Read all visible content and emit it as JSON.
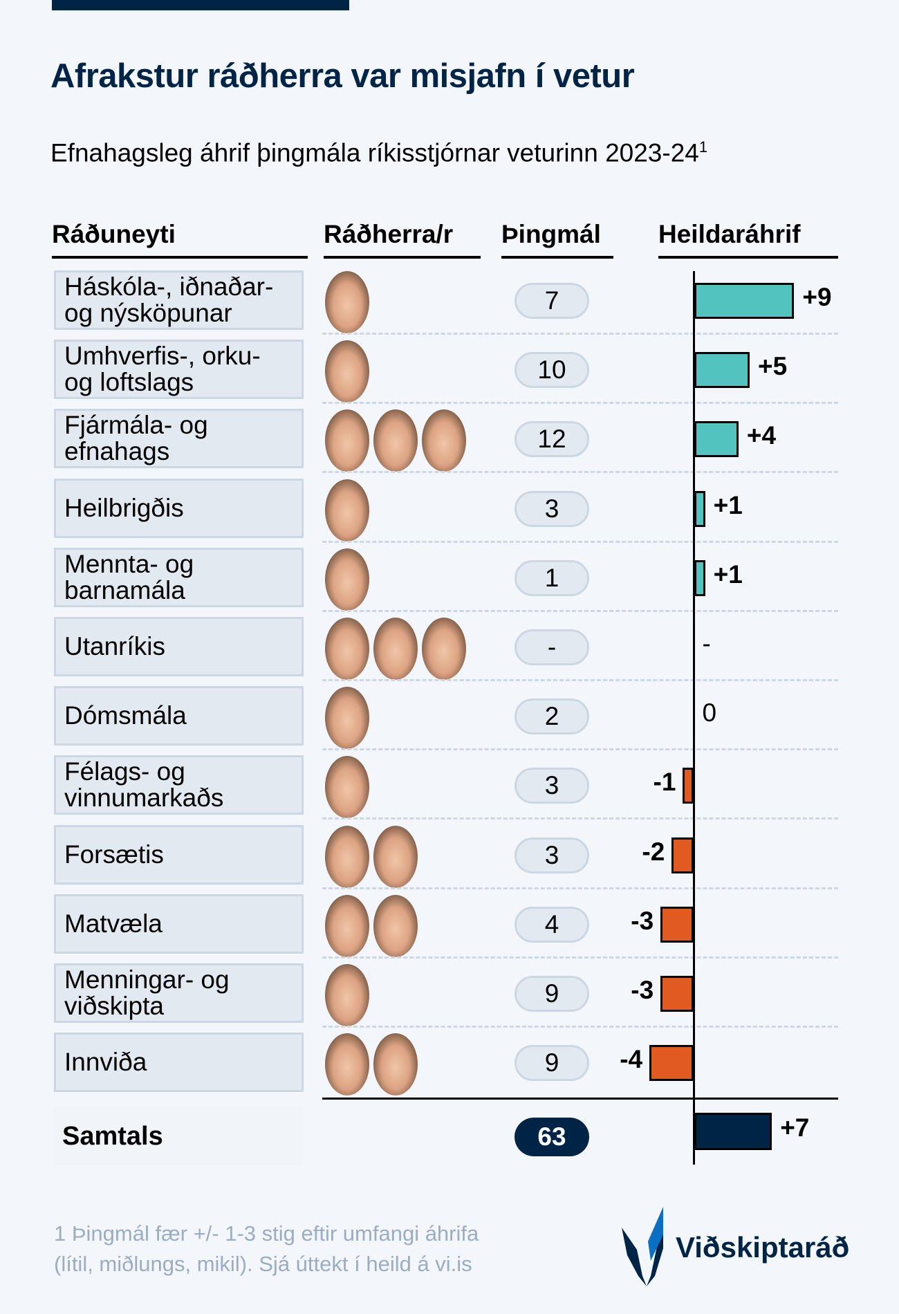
{
  "title": "Afrakstur ráðherra var misjafn í vetur",
  "subtitle": "Efnahagsleg áhrif þingmála ríkisstjórnar veturinn 2023-24",
  "subtitle_footnote_mark": "1",
  "colors": {
    "positive": "#52c3bf",
    "negative": "#e05a22",
    "total": "#002445",
    "navy": "#002445"
  },
  "chart_data": {
    "type": "bar",
    "orientation": "horizontal",
    "title": "Afrakstur ráðherra var misjafn í vetur",
    "subtitle": "Efnahagsleg áhrif þingmála ríkisstjórnar veturinn 2023-24",
    "columns": [
      "Ráðuneyti",
      "Ráðherra/r",
      "Þingmál",
      "Heildaráhrif"
    ],
    "rows": [
      {
        "category": "Háskóla-, iðnaðar-\nog nýsköpunar",
        "ministers": 1,
        "bills": "7",
        "value": 9,
        "label": "+9"
      },
      {
        "category": "Umhverfis-, orku-\nog loftslags",
        "ministers": 1,
        "bills": "10",
        "value": 5,
        "label": "+5"
      },
      {
        "category": "Fjármála- og\nefnahags",
        "ministers": 3,
        "bills": "12",
        "value": 4,
        "label": "+4"
      },
      {
        "category": "Heilbrigðis",
        "ministers": 1,
        "bills": "3",
        "value": 1,
        "label": "+1"
      },
      {
        "category": "Mennta- og\nbarnamála",
        "ministers": 1,
        "bills": "1",
        "value": 1,
        "label": "+1"
      },
      {
        "category": "Utanríkis",
        "ministers": 3,
        "bills": "-",
        "value": null,
        "label": "-"
      },
      {
        "category": "Dómsmála",
        "ministers": 1,
        "bills": "2",
        "value": 0,
        "label": "0"
      },
      {
        "category": "Félags- og\nvinnumarkaðs",
        "ministers": 1,
        "bills": "3",
        "value": -1,
        "label": "-1"
      },
      {
        "category": "Forsætis",
        "ministers": 2,
        "bills": "3",
        "value": -2,
        "label": "-2"
      },
      {
        "category": "Matvæla",
        "ministers": 2,
        "bills": "4",
        "value": -3,
        "label": "-3"
      },
      {
        "category": "Menningar- og\nviðskipta",
        "ministers": 1,
        "bills": "9",
        "value": -3,
        "label": "-3"
      },
      {
        "category": "Innviða",
        "ministers": 2,
        "bills": "9",
        "value": -4,
        "label": "-4"
      }
    ],
    "total": {
      "label": "Samtals",
      "bills": "63",
      "value": 7,
      "value_label": "+7"
    },
    "xlim": [
      -4,
      9
    ]
  },
  "footnote": "1 Þingmál fær +/- 1-3 stig eftir umfangi áhrifa\n(lítil, miðlungs, mikil). Sjá úttekt í heild á vi.is",
  "logo": {
    "text": "Viðskiptaráð"
  }
}
